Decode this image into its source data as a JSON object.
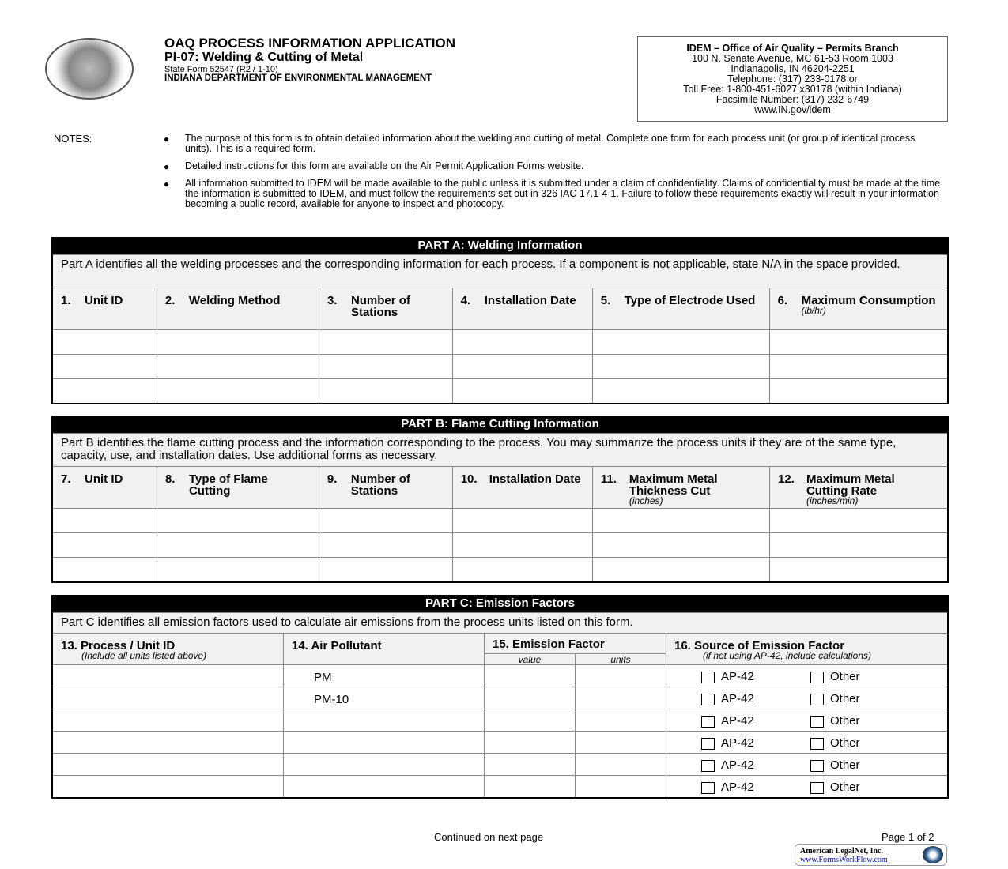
{
  "header": {
    "title": "OAQ PROCESS INFORMATION APPLICATION",
    "subtitle": "PI-07: Welding & Cutting of Metal",
    "form_number": "State Form 52547 (R2 / 1-10)",
    "department": "INDIANA DEPARTMENT OF ENVIRONMENTAL MANAGEMENT",
    "seal_text": "SEAL OF THE STATE OF INDIANA 1816"
  },
  "address": [
    "IDEM – Office of Air Quality – Permits Branch",
    "100 N. Senate Avenue, MC 61-53 Room 1003",
    "Indianapolis, IN 46204-2251",
    "Telephone: (317) 233-0178 or",
    "Toll Free: 1-800-451-6027 x30178 (within Indiana)",
    "Facsimile Number: (317) 232-6749",
    "www.IN.gov/idem"
  ],
  "notes": {
    "label": "NOTES:",
    "items": [
      "The purpose of this form is to obtain detailed information about the welding and cutting of metal.  Complete one form for each process unit (or group of identical process units).  This is a required form.",
      "Detailed instructions for this form are available on the Air Permit Application Forms website.",
      "All information submitted to IDEM will be made available to the public unless it is submitted under a claim of confidentiality. Claims of confidentiality must be made at the time the information is submitted to IDEM, and must follow the requirements set out in 326 IAC 17.1-4-1.  Failure to follow these requirements exactly will result in your information becoming a public record, available for anyone to inspect and photocopy."
    ]
  },
  "partA": {
    "title": "PART A: Welding Information",
    "description": "Part A identifies all the welding processes and the corresponding information for each process.  If a component is not applicable, state N/A in the space provided.",
    "columns": [
      {
        "num": "1.",
        "label": "Unit ID"
      },
      {
        "num": "2.",
        "label": "Welding Method"
      },
      {
        "num": "3.",
        "label": "Number of Stations"
      },
      {
        "num": "4.",
        "label": "Installation Date"
      },
      {
        "num": "5.",
        "label": "Type of Electrode Used"
      },
      {
        "num": "6.",
        "label": "Maximum Consumption",
        "unit": "(lb/hr)"
      }
    ]
  },
  "partB": {
    "title": "PART B: Flame Cutting Information",
    "description": "Part B identifies the flame cutting process and the information corresponding to the process.  You may summarize the process units if they are of the same type, capacity, use, and installation dates.  Use additional forms as necessary.",
    "columns": [
      {
        "num": "7.",
        "label": "Unit ID"
      },
      {
        "num": "8.",
        "label": "Type of Flame Cutting"
      },
      {
        "num": "9.",
        "label": "Number of Stations"
      },
      {
        "num": "10.",
        "label": "Installation Date"
      },
      {
        "num": "11.",
        "label": "Maximum Metal Thickness Cut",
        "unit": "(inches)"
      },
      {
        "num": "12.",
        "label": "Maximum Metal Cutting Rate",
        "unit": "(inches/min)"
      }
    ]
  },
  "partC": {
    "title": "PART C: Emission Factors",
    "description": "Part C identifies all emission factors used to calculate air emissions from the process units listed on this form.",
    "col13": "13. Process / Unit ID",
    "col13_sub": "(Include all units listed above)",
    "col14": "14. Air Pollutant",
    "col15": "15. Emission Factor",
    "col15_value": "value",
    "col15_units": "units",
    "col16": "16. Source of Emission Factor",
    "col16_sub": "(if not using AP-42, include calculations)",
    "option_ap42": "AP-42",
    "option_other": "Other",
    "pollutants": [
      "PM",
      "PM-10",
      "",
      "",
      "",
      ""
    ]
  },
  "footer": {
    "continued": "Continued on next page",
    "page": "Page 1 of 2",
    "logo_name": "American LegalNet, Inc.",
    "logo_url": "www.FormsWorkFlow.com"
  }
}
